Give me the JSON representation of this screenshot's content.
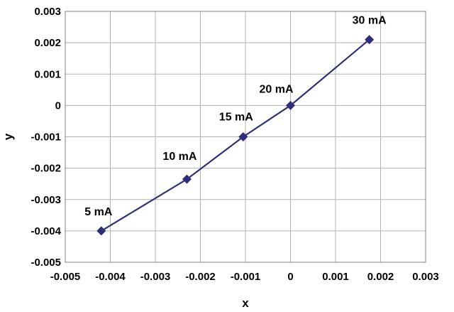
{
  "chart_data": {
    "type": "scatter",
    "title": "",
    "xlabel": "x",
    "ylabel": "y",
    "xlim": [
      -0.005,
      0.003
    ],
    "ylim": [
      -0.005,
      0.003
    ],
    "x_ticks": [
      "-0.005",
      "-0.004",
      "-0.003",
      "-0.002",
      "-0.001",
      "0",
      "0.001",
      "0.002",
      "0.003"
    ],
    "y_ticks": [
      "0.003",
      "0.002",
      "0.001",
      "0",
      "-0.001",
      "-0.002",
      "-0.003",
      "-0.004",
      "-0.005"
    ],
    "x_tick_values": [
      -0.005,
      -0.004,
      -0.003,
      -0.002,
      -0.001,
      0,
      0.001,
      0.002,
      0.003
    ],
    "y_tick_values": [
      0.003,
      0.002,
      0.001,
      0,
      -0.001,
      -0.002,
      -0.003,
      -0.004,
      -0.005
    ],
    "grid": true,
    "line_color": "#2e2e7a",
    "marker": "diamond",
    "points": [
      {
        "x": -0.0042,
        "y": -0.004,
        "label": "5 mA"
      },
      {
        "x": -0.0023,
        "y": -0.00235,
        "label": "10 mA"
      },
      {
        "x": -0.00105,
        "y": -0.001,
        "label": "15 mA"
      },
      {
        "x": 0.0,
        "y": 0.0,
        "label": "20 mA"
      },
      {
        "x": 0.00175,
        "y": 0.0021,
        "label": "30 mA"
      }
    ]
  }
}
